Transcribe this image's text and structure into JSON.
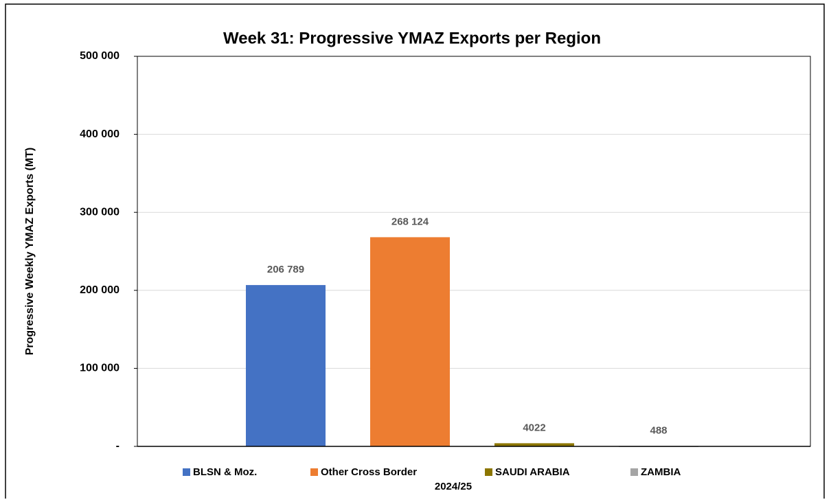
{
  "chart_data": {
    "type": "bar",
    "title": "Week 31: Progressive YMAZ Exports per Region",
    "y_axis_label": "Progressive Weekly YMAZ Exports (MT)",
    "categories": [
      "2024/25"
    ],
    "series": [
      {
        "name": "BLSN & Moz.",
        "color": "#4472c4",
        "values": [
          206789
        ],
        "value_labels": [
          "206 789"
        ]
      },
      {
        "name": "Other Cross Border",
        "color": "#ed7d31",
        "values": [
          268124
        ],
        "value_labels": [
          "268 124"
        ]
      },
      {
        "name": "SAUDI ARABIA",
        "color": "#8c7600",
        "values": [
          4022
        ]
      },
      {
        "name": "ZAMBIA",
        "color": "#a5a5a5",
        "values": [
          488
        ]
      }
    ],
    "ylim": [
      0,
      500000
    ],
    "yticks": [
      {
        "value": 0,
        "label": "-"
      },
      {
        "value": 100000,
        "label": "100 000"
      },
      {
        "value": 200000,
        "label": "200 000"
      },
      {
        "value": 300000,
        "label": "300 000"
      },
      {
        "value": 400000,
        "label": "400 000"
      },
      {
        "value": 500000,
        "label": "500 000"
      }
    ],
    "grid": true,
    "legend": "bottom"
  }
}
